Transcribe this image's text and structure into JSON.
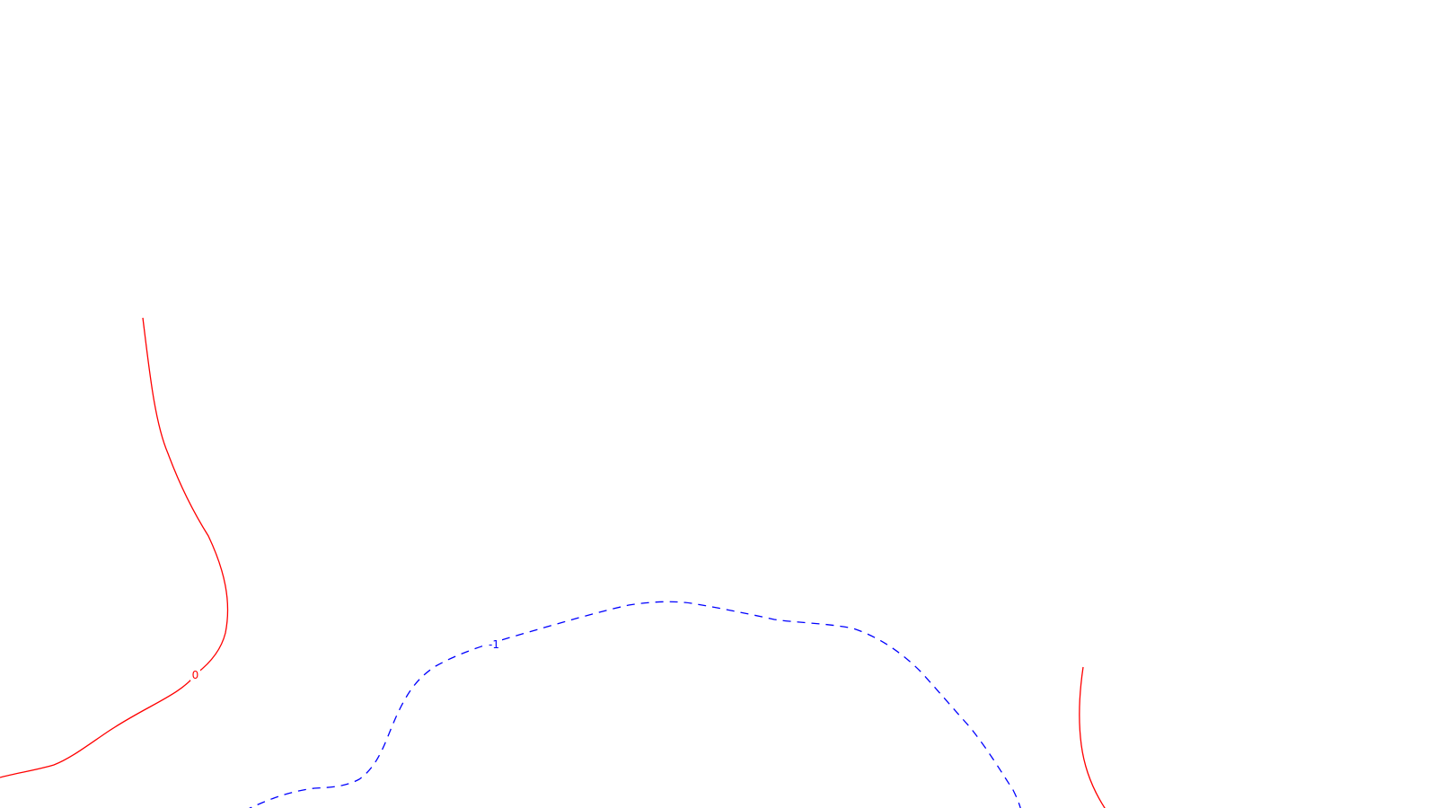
{
  "colors": {
    "background": "#ffffff",
    "contour_zero": "#ff0000",
    "contour_negative": "#0000ff"
  },
  "contours": [
    {
      "name": "contour-0-left",
      "level": "0",
      "style": "solid",
      "color": "#ff0000",
      "label": "0"
    },
    {
      "name": "contour-minus1",
      "level": "-1",
      "style": "dashed",
      "color": "#0000ff",
      "label": "-1"
    },
    {
      "name": "contour-0-right",
      "level": "0",
      "style": "solid",
      "color": "#ff0000",
      "label": ""
    }
  ]
}
